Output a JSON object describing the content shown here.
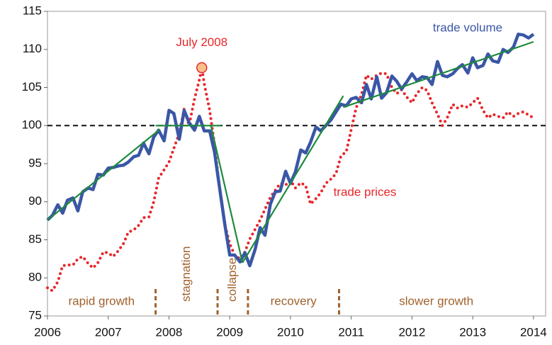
{
  "chart_data": {
    "type": "line",
    "xlim": [
      2006,
      2014.2
    ],
    "xticks": [
      2006,
      2007,
      2008,
      2009,
      2010,
      2011,
      2012,
      2013,
      2014
    ],
    "ylim": [
      75,
      115
    ],
    "yticks": [
      75,
      80,
      85,
      90,
      95,
      100,
      105,
      110,
      115
    ],
    "hline": 100,
    "series": [
      {
        "name": "trade volume",
        "color": "#3a56a6",
        "style": "solid",
        "x": [
          2006.0,
          2006.08,
          2006.17,
          2006.25,
          2006.33,
          2006.42,
          2006.5,
          2006.58,
          2006.67,
          2006.75,
          2006.83,
          2006.92,
          2007.0,
          2007.08,
          2007.17,
          2007.25,
          2007.33,
          2007.42,
          2007.5,
          2007.58,
          2007.67,
          2007.75,
          2007.83,
          2007.92,
          2008.0,
          2008.08,
          2008.17,
          2008.25,
          2008.33,
          2008.42,
          2008.5,
          2008.58,
          2008.67,
          2008.75,
          2008.83,
          2008.92,
          2009.0,
          2009.08,
          2009.17,
          2009.25,
          2009.33,
          2009.42,
          2009.5,
          2009.58,
          2009.67,
          2009.75,
          2009.83,
          2009.92,
          2010.0,
          2010.08,
          2010.17,
          2010.25,
          2010.33,
          2010.42,
          2010.5,
          2010.58,
          2010.67,
          2010.75,
          2010.83,
          2010.92,
          2011.0,
          2011.08,
          2011.17,
          2011.25,
          2011.33,
          2011.42,
          2011.5,
          2011.58,
          2011.67,
          2011.75,
          2011.83,
          2011.92,
          2012.0,
          2012.08,
          2012.17,
          2012.25,
          2012.33,
          2012.42,
          2012.5,
          2012.58,
          2012.67,
          2012.75,
          2012.83,
          2012.92,
          2013.0,
          2013.08,
          2013.17,
          2013.25,
          2013.33,
          2013.42,
          2013.5,
          2013.58,
          2013.67,
          2013.75,
          2013.83,
          2013.92,
          2014.0
        ],
        "values": [
          87.6,
          88.2,
          89.6,
          88.5,
          90.2,
          90.5,
          88.8,
          91.3,
          91.8,
          91.6,
          93.6,
          93.5,
          94.4,
          94.5,
          94.7,
          94.8,
          95.2,
          95.9,
          96.1,
          97.7,
          96.3,
          98.5,
          99.4,
          98.0,
          102.0,
          101.6,
          98.2,
          102.0,
          100.4,
          99.4,
          101.2,
          99.3,
          99.3,
          96.5,
          92.0,
          87.0,
          83.0,
          83.0,
          82.1,
          83.3,
          81.6,
          83.8,
          86.6,
          85.6,
          89.7,
          91.3,
          91.4,
          94.0,
          92.4,
          93.9,
          96.8,
          96.4,
          97.8,
          99.8,
          99.3,
          100.0,
          100.8,
          101.8,
          102.8,
          102.6,
          103.5,
          103.7,
          103.0,
          105.4,
          103.5,
          106.4,
          103.6,
          104.3,
          106.5,
          105.8,
          104.8,
          105.8,
          106.8,
          105.9,
          106.4,
          106.3,
          105.4,
          108.4,
          106.6,
          106.4,
          106.8,
          107.5,
          108.0,
          106.9,
          108.9,
          107.6,
          107.9,
          109.4,
          108.5,
          108.3,
          110.0,
          109.6,
          110.3,
          112.0,
          111.9,
          111.5,
          112.0
        ]
      },
      {
        "name": "trade prices",
        "color": "#e8262a",
        "style": "dotted",
        "x": [
          2006.0,
          2006.08,
          2006.17,
          2006.25,
          2006.33,
          2006.42,
          2006.5,
          2006.58,
          2006.67,
          2006.75,
          2006.83,
          2006.92,
          2007.0,
          2007.08,
          2007.17,
          2007.25,
          2007.33,
          2007.42,
          2007.5,
          2007.58,
          2007.67,
          2007.75,
          2007.83,
          2007.92,
          2008.0,
          2008.08,
          2008.17,
          2008.25,
          2008.33,
          2008.42,
          2008.5,
          2008.54,
          2008.58,
          2008.67,
          2008.75,
          2008.83,
          2008.92,
          2009.0,
          2009.08,
          2009.17,
          2009.25,
          2009.33,
          2009.42,
          2009.5,
          2009.58,
          2009.67,
          2009.75,
          2009.83,
          2009.92,
          2010.0,
          2010.08,
          2010.17,
          2010.25,
          2010.33,
          2010.42,
          2010.5,
          2010.58,
          2010.67,
          2010.75,
          2010.83,
          2010.92,
          2011.0,
          2011.08,
          2011.17,
          2011.25,
          2011.33,
          2011.42,
          2011.5,
          2011.58,
          2011.67,
          2011.75,
          2011.83,
          2011.92,
          2012.0,
          2012.08,
          2012.17,
          2012.25,
          2012.33,
          2012.42,
          2012.5,
          2012.58,
          2012.67,
          2012.75,
          2012.83,
          2012.92,
          2013.0,
          2013.08,
          2013.17,
          2013.25,
          2013.33,
          2013.42,
          2013.5,
          2013.58,
          2013.67,
          2013.75,
          2013.83,
          2013.92,
          2014.0
        ],
        "values": [
          78.7,
          78.3,
          79.5,
          81.6,
          81.7,
          81.7,
          82.5,
          82.8,
          81.9,
          81.3,
          82.0,
          83.4,
          83.3,
          82.8,
          83.6,
          84.5,
          86.0,
          86.3,
          86.9,
          87.9,
          88.0,
          90.0,
          93.1,
          94.2,
          95.2,
          97.0,
          99.0,
          102.2,
          100.0,
          103.5,
          106.0,
          107.6,
          105.5,
          102.0,
          97.5,
          92.0,
          87.0,
          84.5,
          83.0,
          82.5,
          83.4,
          85.1,
          86.4,
          87.6,
          89.0,
          90.6,
          91.5,
          92.4,
          92.2,
          92.8,
          91.8,
          92.5,
          92.1,
          89.7,
          90.4,
          91.2,
          92.4,
          93.0,
          93.7,
          96.0,
          96.6,
          99.5,
          102.3,
          104.1,
          106.6,
          106.1,
          106.6,
          106.9,
          106.8,
          105.0,
          104.2,
          104.7,
          103.7,
          103.0,
          104.2,
          105.0,
          104.6,
          103.0,
          101.5,
          100.0,
          101.0,
          102.8,
          102.3,
          102.6,
          102.4,
          103.0,
          103.6,
          102.0,
          101.0,
          101.5,
          101.2,
          101.0,
          101.8,
          101.2,
          101.6,
          101.8,
          101.4,
          101.0
        ]
      },
      {
        "color": "#1e8a3c",
        "style": "trend",
        "x": [
          2006.0,
          2007.85
        ],
        "values": [
          87.6,
          99.5
        ]
      },
      {
        "color": "#1e8a3c",
        "style": "trend",
        "x": [
          2007.78,
          2008.86
        ],
        "values": [
          100,
          100
        ]
      },
      {
        "color": "#1e8a3c",
        "style": "trend",
        "x": [
          2008.69,
          2009.21
        ],
        "values": [
          100,
          82.0
        ]
      },
      {
        "color": "#1e8a3c",
        "style": "trend",
        "x": [
          2009.21,
          2010.87
        ],
        "values": [
          82.0,
          103.9
        ]
      },
      {
        "color": "#1e8a3c",
        "style": "trend",
        "x": [
          2010.87,
          2014.0
        ],
        "values": [
          102.4,
          111.0
        ]
      }
    ],
    "annotations": [
      {
        "text": "July 2008",
        "x": 2008.54,
        "y": 107.6
      }
    ],
    "phase_boundaries": [
      2007.78,
      2008.8,
      2009.3,
      2010.8
    ],
    "phase_labels": [
      "rapid growth",
      "stagnation",
      "collapse",
      "recovery",
      "slower growth"
    ]
  }
}
